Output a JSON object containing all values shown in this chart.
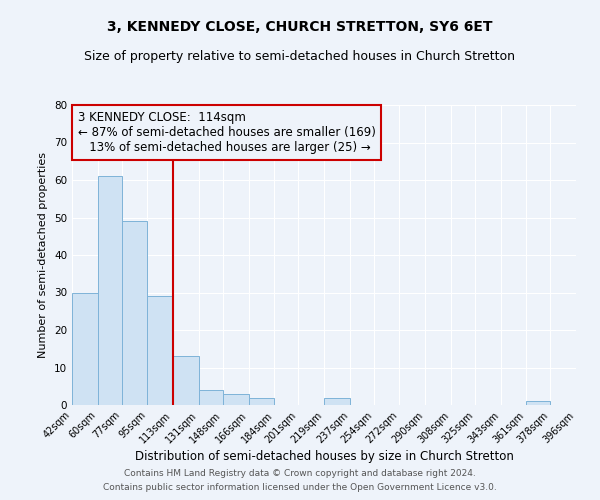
{
  "title": "3, KENNEDY CLOSE, CHURCH STRETTON, SY6 6ET",
  "subtitle": "Size of property relative to semi-detached houses in Church Stretton",
  "xlabel": "Distribution of semi-detached houses by size in Church Stretton",
  "ylabel": "Number of semi-detached properties",
  "bin_edges": [
    42,
    60,
    77,
    95,
    113,
    131,
    148,
    166,
    184,
    201,
    219,
    237,
    254,
    272,
    290,
    308,
    325,
    343,
    361,
    378,
    396
  ],
  "bar_heights": [
    30,
    61,
    49,
    29,
    13,
    4,
    3,
    2,
    0,
    0,
    2,
    0,
    0,
    0,
    0,
    0,
    0,
    0,
    1,
    0
  ],
  "bar_color": "#cfe2f3",
  "bar_edge_color": "#7eb3d8",
  "vline_x": 113,
  "vline_color": "#cc0000",
  "annotation_line1": "3 KENNEDY CLOSE:  114sqm",
  "annotation_line2": "← 87% of semi-detached houses are smaller (169)",
  "annotation_line3": "   13% of semi-detached houses are larger (25) →",
  "annotation_box_color": "#cc0000",
  "annotation_text_color": "#000000",
  "ylim": [
    0,
    80
  ],
  "xlim": [
    42,
    396
  ],
  "tick_labels": [
    "42sqm",
    "60sqm",
    "77sqm",
    "95sqm",
    "113sqm",
    "131sqm",
    "148sqm",
    "166sqm",
    "184sqm",
    "201sqm",
    "219sqm",
    "237sqm",
    "254sqm",
    "272sqm",
    "290sqm",
    "308sqm",
    "325sqm",
    "343sqm",
    "361sqm",
    "378sqm",
    "396sqm"
  ],
  "footer1": "Contains HM Land Registry data © Crown copyright and database right 2024.",
  "footer2": "Contains public sector information licensed under the Open Government Licence v3.0.",
  "background_color": "#eef3fa",
  "title_fontsize": 10,
  "subtitle_fontsize": 9,
  "annotation_fontsize": 8.5,
  "xlabel_fontsize": 8.5,
  "ylabel_fontsize": 8,
  "tick_fontsize": 7,
  "ytick_fontsize": 7.5,
  "footer_fontsize": 6.5
}
